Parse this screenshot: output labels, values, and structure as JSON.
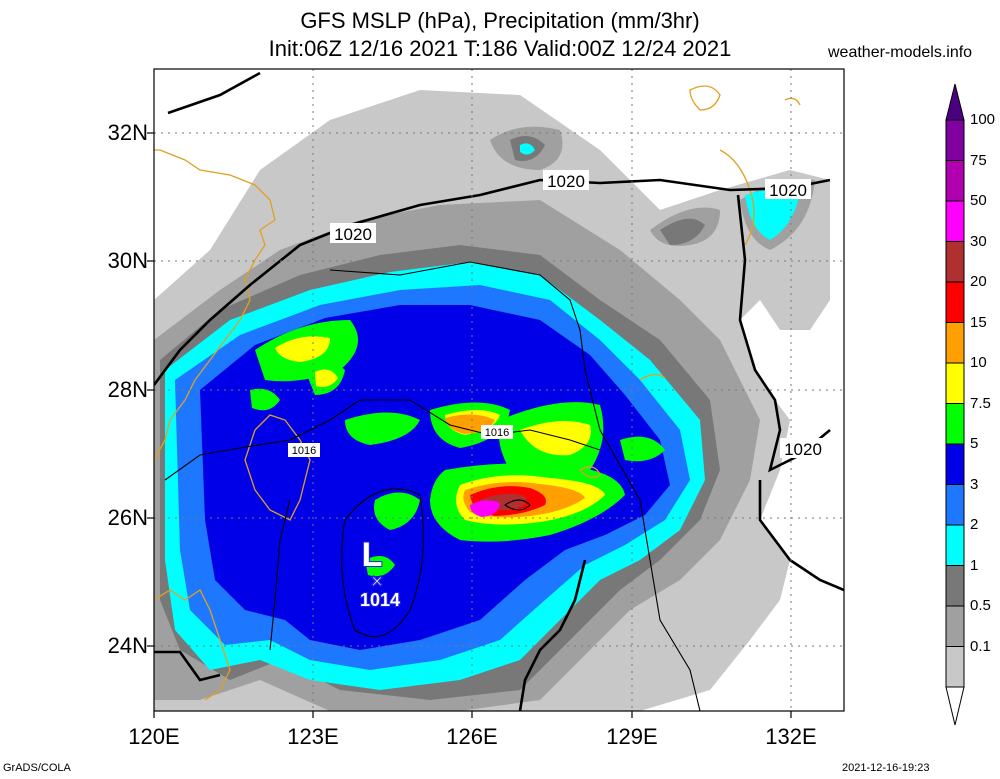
{
  "header": {
    "title_line1": "GFS MSLP (hPa), Precipitation (mm/3hr)",
    "title_line2": "Init:06Z 12/16 2021 T:186 Valid:00Z 12/24 2021",
    "site": "weather-models.info"
  },
  "footer": {
    "left": "GrADS/COLA",
    "right": "2021-12-16-19:23"
  },
  "map": {
    "lon_labels": [
      "120E",
      "123E",
      "126E",
      "129E",
      "132E"
    ],
    "lat_labels": [
      "32N",
      "30N",
      "28N",
      "26N",
      "24N"
    ],
    "isobar_labels": [
      "1020",
      "1020",
      "1020",
      "1016",
      "1016",
      "1020"
    ],
    "low": {
      "symbol": "L",
      "pressure": "1014"
    }
  },
  "legend": {
    "labels": [
      "100",
      "75",
      "50",
      "30",
      "20",
      "15",
      "10",
      "7.5",
      "5",
      "3",
      "2",
      "1",
      "0.5",
      "0.1"
    ],
    "colors": [
      "#8000a0",
      "#b000b0",
      "#ff00ff",
      "#b03030",
      "#ff0000",
      "#ffa000",
      "#ffff00",
      "#00ff00",
      "#0000e8",
      "#1e78ff",
      "#00ffff",
      "#787878",
      "#a0a0a0",
      "#c8c8c8"
    ]
  }
}
